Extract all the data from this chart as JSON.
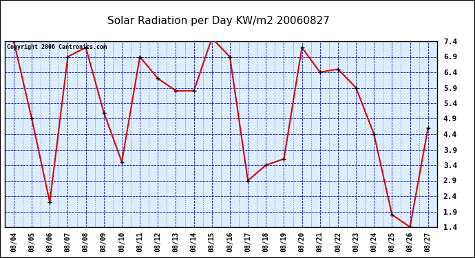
{
  "title": "Solar Radiation per Day KW/m2 20060827",
  "copyright": "Copyright 2006 Cantronics.com",
  "dates": [
    "08/04",
    "08/05",
    "08/06",
    "08/07",
    "08/08",
    "08/09",
    "08/10",
    "08/11",
    "08/12",
    "08/13",
    "08/14",
    "08/15",
    "08/16",
    "08/17",
    "08/18",
    "08/19",
    "08/20",
    "08/21",
    "08/22",
    "08/23",
    "08/24",
    "08/25",
    "08/26",
    "08/27"
  ],
  "values": [
    7.4,
    4.9,
    2.2,
    6.9,
    7.2,
    5.1,
    3.5,
    6.9,
    6.2,
    5.8,
    5.8,
    7.5,
    6.9,
    2.9,
    3.4,
    3.6,
    7.2,
    6.4,
    6.5,
    5.9,
    4.4,
    1.8,
    1.4,
    4.6
  ],
  "line_color": "#dd0000",
  "marker_color": "#000000",
  "outer_bg": "#ffffff",
  "title_bg": "#ffffff",
  "plot_bg": "#ffffff",
  "grid_color_h": "#0000bb",
  "grid_color_v": "#0000bb",
  "text_color": "#000000",
  "title_color": "#000000",
  "ylim": [
    1.4,
    7.4
  ],
  "yticks": [
    1.4,
    1.9,
    2.4,
    2.9,
    3.4,
    3.9,
    4.4,
    4.9,
    5.4,
    5.9,
    6.4,
    6.9,
    7.4
  ],
  "figsize": [
    6.9,
    3.75
  ],
  "dpi": 100
}
